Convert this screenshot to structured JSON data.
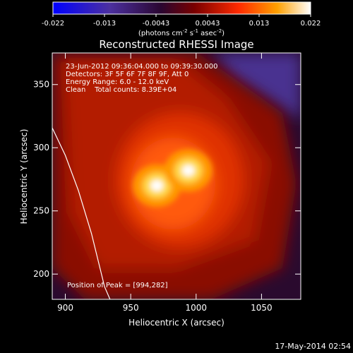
{
  "chart_data": {
    "type": "heatmap",
    "title": "Reconstructed RHESSI Image",
    "xlabel": "Heliocentric X (arcsec)",
    "ylabel": "Heliocentric Y (arcsec)",
    "xlim": [
      890,
      1080
    ],
    "ylim": [
      180,
      375
    ],
    "x_ticks": [
      900,
      950,
      1000,
      1050
    ],
    "y_ticks": [
      200,
      250,
      300,
      350
    ],
    "colorbar": {
      "min": -0.022,
      "max": 0.022,
      "ticks": [
        "-0.022",
        "-0.013",
        "-0.0043",
        "0.0043",
        "0.013",
        "0.022"
      ],
      "label_prefix": "(photons cm",
      "label_exp1": "-2",
      "label_mid": " s",
      "label_exp2": "-1",
      "label_mid2": " asec",
      "label_exp3": "-2",
      "label_suffix": ")"
    },
    "annotations": {
      "time": "23-Jun-2012 09:36:04.000 to 09:39:30.000",
      "detectors": "Detectors: 3F 5F 6F 7F 8F 9F, Att 0",
      "energy": "Energy Range: 6.0 - 12.0 keV",
      "clean": "Clean    Total counts: 8.39E+04",
      "peak": "Position of Peak = [994,282]"
    },
    "sources": [
      {
        "x": 970,
        "y": 270,
        "peak": 0.022
      },
      {
        "x": 994,
        "y": 282,
        "peak": 0.022
      }
    ],
    "limb_points": [
      [
        888,
        320
      ],
      [
        900,
        294
      ],
      [
        910,
        266
      ],
      [
        920,
        232
      ],
      [
        930,
        190
      ],
      [
        935,
        178
      ]
    ],
    "colors": {
      "background": "#000000",
      "colormap": [
        "#0000ff",
        "#4b2c99",
        "#2a0a33",
        "#8b0000",
        "#ff3000",
        "#ffa500",
        "#ffffff"
      ]
    }
  },
  "footer": {
    "timestamp": "17-May-2014 02:54"
  }
}
